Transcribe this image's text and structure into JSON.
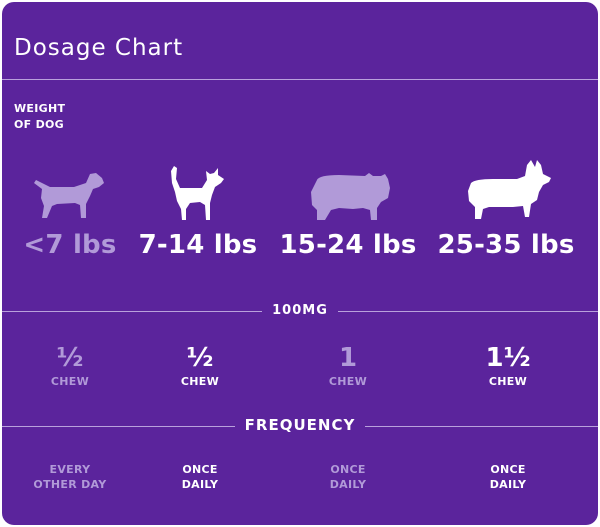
{
  "title": "Dosage Chart",
  "weight_label": [
    "WEIGHT",
    "OF DOG"
  ],
  "colors": {
    "background": "#5b249c",
    "muted": "#b19ad8",
    "highlight": "#ffffff"
  },
  "columns": [
    {
      "dog_icon": "small-dog-icon",
      "weight": "<7 lbs",
      "dose_amount": "½",
      "dose_unit": "CHEW",
      "frequency": [
        "EVERY",
        "OTHER DAY"
      ],
      "highlighted": false
    },
    {
      "dog_icon": "chihuahua-icon",
      "weight": "7-14 lbs",
      "dose_amount": "½",
      "dose_unit": "CHEW",
      "frequency": [
        "ONCE",
        "DAILY"
      ],
      "highlighted": true
    },
    {
      "dog_icon": "bulldog-icon",
      "weight": "15-24 lbs",
      "dose_amount": "1",
      "dose_unit": "CHEW",
      "frequency": [
        "ONCE",
        "DAILY"
      ],
      "highlighted": false
    },
    {
      "dog_icon": "corgi-icon",
      "weight": "25-35 lbs",
      "dose_amount": "1½",
      "dose_unit": "CHEW",
      "frequency": [
        "ONCE",
        "DAILY"
      ],
      "highlighted": true
    }
  ],
  "dose_section": "100MG",
  "frequency_section": "FREQUENCY"
}
